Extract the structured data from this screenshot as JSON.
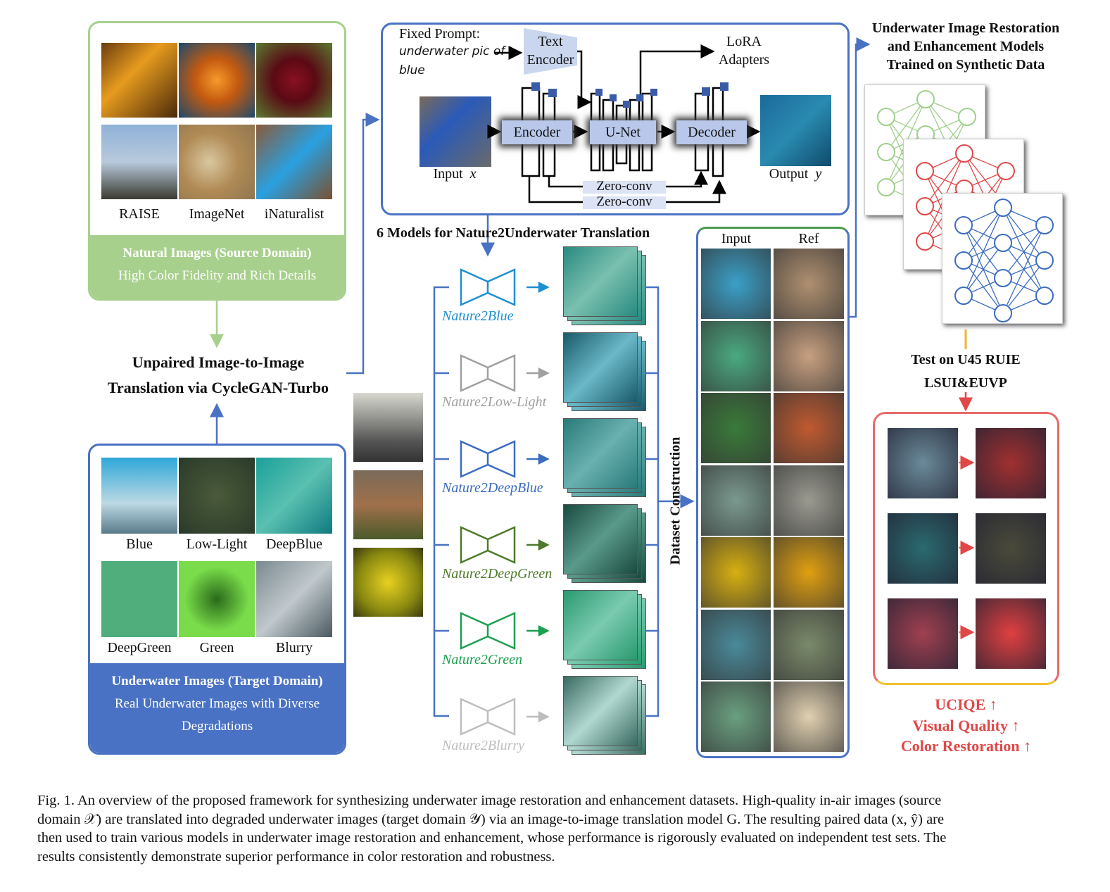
{
  "source_panel": {
    "labels": [
      "RAISE",
      "ImageNet",
      "iNaturalist"
    ],
    "title": "Natural Images (Source Domain)",
    "subtitle": "High Color Fidelity and Rich Details",
    "color": "#a8d08d"
  },
  "translation": {
    "line1": "Unpaired Image-to-Image",
    "line2": "Translation via CycleGAN-Turbo"
  },
  "target_panel": {
    "labels_row1": [
      "Blue",
      "Low-Light",
      "DeepBlue"
    ],
    "labels_row2": [
      "DeepGreen",
      "Green",
      "Blurry"
    ],
    "title": "Underwater Images (Target Domain)",
    "subtitle_line1": "Real Underwater Images with Diverse",
    "subtitle_line2": "Degradations",
    "color": "#4a72c4"
  },
  "architecture": {
    "prompt_label": "Fixed Prompt:",
    "prompt_text_1": "underwater pic of",
    "prompt_text_2": "blue",
    "text_encoder_1": "Text",
    "text_encoder_2": "Encoder",
    "lora_1": "LoRA",
    "lora_2": "Adapters",
    "encoder": "Encoder",
    "unet": "U-Net",
    "decoder": "Decoder",
    "input_label": "Input",
    "input_var": "x",
    "output_label": "Output",
    "output_var": "y",
    "zero_conv": "Zero-conv"
  },
  "models": {
    "title": "6 Models for Nature2Underwater Translation",
    "items": [
      {
        "name": "Nature2Blue",
        "color": "#1e8fd0"
      },
      {
        "name": "Nature2Low-Light",
        "color": "#a0a0a0"
      },
      {
        "name": "Nature2DeepBlue",
        "color": "#3b6cc0"
      },
      {
        "name": "Nature2DeepGreen",
        "color": "#4d7a2a"
      },
      {
        "name": "Nature2Green",
        "color": "#1aa04e"
      },
      {
        "name": "Nature2Blurry",
        "color": "#bdbdbd"
      }
    ]
  },
  "dataset": {
    "label": "Dataset Construction",
    "input_header": "Input",
    "ref_header": "Ref"
  },
  "training": {
    "line1": "Underwater Image Restoration",
    "line2": "and Enhancement Models",
    "line3": "Trained on Synthetic Data",
    "net_colors": [
      "#9fcf8a",
      "#e04848",
      "#3b6cc0"
    ]
  },
  "test": {
    "line1": "Test on U45 RUIE",
    "line2": "LSUI&EUVP"
  },
  "metrics": [
    "UCIQE ↑",
    "Visual Quality ↑",
    "Color Restoration ↑"
  ],
  "caption": [
    "Fig. 1.  An overview of the proposed framework for synthesizing underwater image restoration and enhancement datasets. High-quality in-air images (source",
    "domain 𝒳) are translated into degraded underwater images (target domain 𝒴) via an image-to-image translation model G. The resulting paired data (x, ŷ) are",
    "then used to train various models in underwater image restoration and enhancement, whose performance is rigorously evaluated on independent test sets. The",
    "results consistently demonstrate superior performance in color restoration and robustness."
  ]
}
